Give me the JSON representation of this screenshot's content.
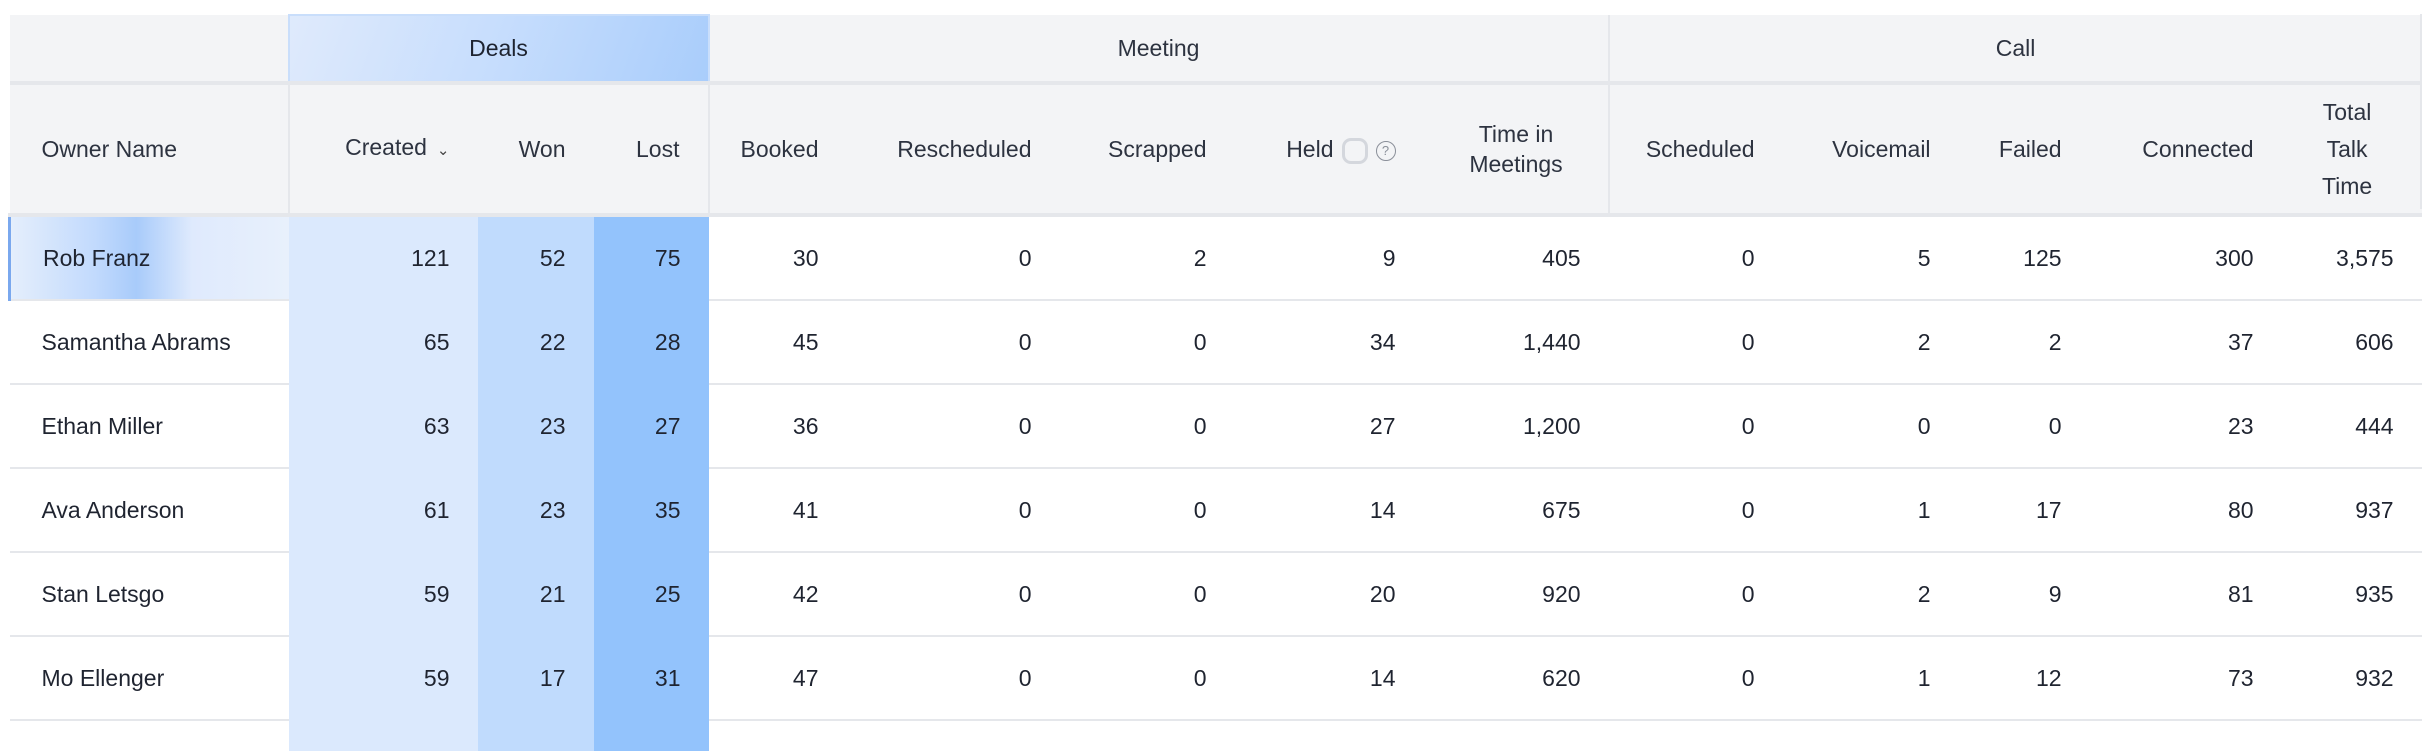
{
  "groups": {
    "deals": "Deals",
    "meeting": "Meeting",
    "call": "Call"
  },
  "columns": {
    "owner": "Owner Name",
    "created": "Created",
    "won": "Won",
    "lost": "Lost",
    "booked": "Booked",
    "rescheduled": "Rescheduled",
    "scrapped": "Scrapped",
    "held": "Held",
    "time_in_meetings_1": "Time in",
    "time_in_meetings_2": "Meetings",
    "scheduled": "Scheduled",
    "voicemail": "Voicemail",
    "failed": "Failed",
    "connected": "Connected",
    "total_talk_1": "Total",
    "total_talk_2": "Talk",
    "total_talk_3": "Time"
  },
  "icons": {
    "sort": "chevron-down-icon",
    "held_toggle": "toggle-icon",
    "help": "question-circle-icon",
    "help_glyph": "?",
    "chevron_glyph": "⌄"
  },
  "colors": {
    "created": "#dbe9fd",
    "won": "#c0dbfd",
    "lost": "#93c3fc",
    "header": "#f3f4f6"
  },
  "rows": [
    [
      "Rob Franz",
      "121",
      "52",
      "75",
      "30",
      "0",
      "2",
      "9",
      "405",
      "0",
      "5",
      "125",
      "300",
      "3,575"
    ],
    [
      "Samantha Abrams",
      "65",
      "22",
      "28",
      "45",
      "0",
      "0",
      "34",
      "1,440",
      "0",
      "2",
      "2",
      "37",
      "606"
    ],
    [
      "Ethan Miller",
      "63",
      "23",
      "27",
      "36",
      "0",
      "0",
      "27",
      "1,200",
      "0",
      "0",
      "0",
      "23",
      "444"
    ],
    [
      "Ava Anderson",
      "61",
      "23",
      "35",
      "41",
      "0",
      "0",
      "14",
      "675",
      "0",
      "1",
      "17",
      "80",
      "937"
    ],
    [
      "Stan Letsgo",
      "59",
      "21",
      "25",
      "42",
      "0",
      "0",
      "20",
      "920",
      "0",
      "2",
      "9",
      "81",
      "935"
    ],
    [
      "Mo Ellenger",
      "59",
      "17",
      "31",
      "47",
      "0",
      "0",
      "14",
      "620",
      "0",
      "1",
      "12",
      "73",
      "932"
    ]
  ]
}
